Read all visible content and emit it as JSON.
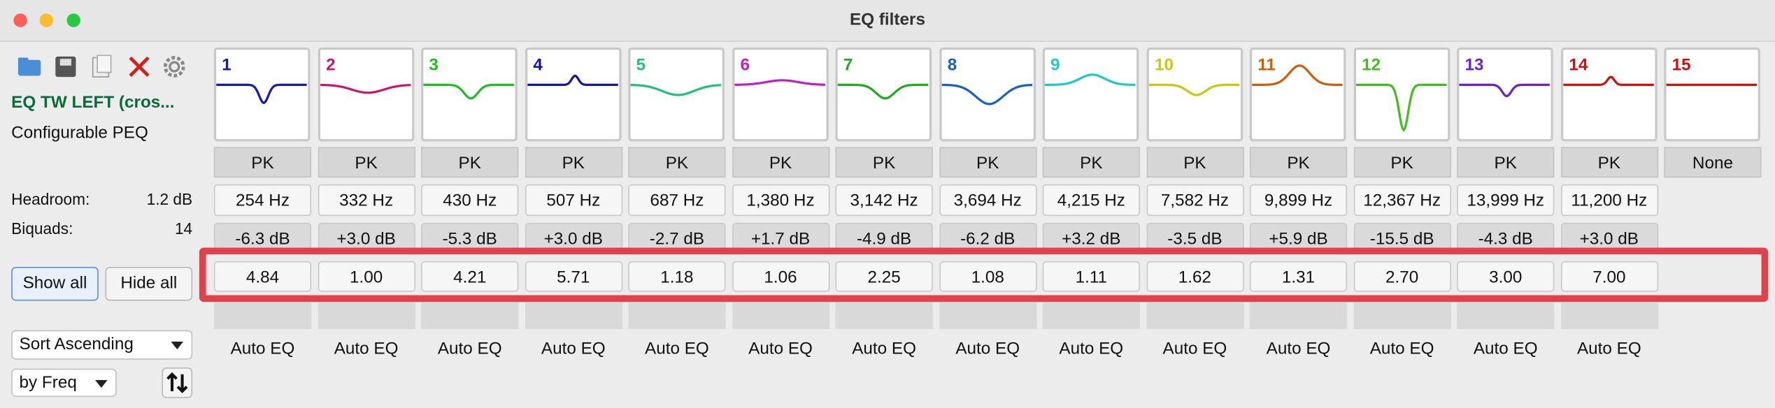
{
  "window": {
    "title": "EQ filters"
  },
  "sidebar": {
    "name": "EQ TW LEFT (cros...",
    "subtitle": "Configurable PEQ",
    "headroom_label": "Headroom:",
    "headroom": "1.2 dB",
    "biquads_label": "Biquads:",
    "biquads": "14",
    "show_all": "Show all",
    "hide_all": "Hide all",
    "sort_order": "Sort Ascending",
    "sort_key": "by Freq"
  },
  "filters": [
    {
      "number": "1",
      "color": "#1a1aa8",
      "type": "PK",
      "freq": "254 Hz",
      "gain": "-6.3 dB",
      "q": "4.84",
      "source": "Auto EQ"
    },
    {
      "number": "2",
      "color": "#c8186a",
      "type": "PK",
      "freq": "332 Hz",
      "gain": "+3.0 dB",
      "q": "1.00",
      "source": "Auto EQ"
    },
    {
      "number": "3",
      "color": "#22bb22",
      "type": "PK",
      "freq": "430 Hz",
      "gain": "-5.3 dB",
      "q": "4.21",
      "source": "Auto EQ"
    },
    {
      "number": "4",
      "color": "#1414a0",
      "type": "PK",
      "freq": "507 Hz",
      "gain": "+3.0 dB",
      "q": "5.71",
      "source": "Auto EQ"
    },
    {
      "number": "5",
      "color": "#22c07a",
      "type": "PK",
      "freq": "687 Hz",
      "gain": "-2.7 dB",
      "q": "1.18",
      "source": "Auto EQ"
    },
    {
      "number": "6",
      "color": "#c020c0",
      "type": "PK",
      "freq": "1,380 Hz",
      "gain": "+1.7 dB",
      "q": "1.06",
      "source": "Auto EQ"
    },
    {
      "number": "7",
      "color": "#22aa22",
      "type": "PK",
      "freq": "3,142 Hz",
      "gain": "-4.9 dB",
      "q": "2.25",
      "source": "Auto EQ"
    },
    {
      "number": "8",
      "color": "#1a60c0",
      "type": "PK",
      "freq": "3,694 Hz",
      "gain": "-6.2 dB",
      "q": "1.08",
      "source": "Auto EQ"
    },
    {
      "number": "9",
      "color": "#20c8c8",
      "type": "PK",
      "freq": "4,215 Hz",
      "gain": "+3.2 dB",
      "q": "1.11",
      "source": "Auto EQ"
    },
    {
      "number": "10",
      "color": "#c8c810",
      "type": "PK",
      "freq": "7,582 Hz",
      "gain": "-3.5 dB",
      "q": "1.62",
      "source": "Auto EQ"
    },
    {
      "number": "11",
      "color": "#c86010",
      "type": "PK",
      "freq": "9,899 Hz",
      "gain": "+5.9 dB",
      "q": "1.31",
      "source": "Auto EQ"
    },
    {
      "number": "12",
      "color": "#44bb22",
      "type": "PK",
      "freq": "12,367 Hz",
      "gain": "-15.5 dB",
      "q": "2.70",
      "source": "Auto EQ"
    },
    {
      "number": "13",
      "color": "#7020c0",
      "type": "PK",
      "freq": "13,999 Hz",
      "gain": "-4.3 dB",
      "q": "3.00",
      "source": "Auto EQ"
    },
    {
      "number": "14",
      "color": "#d01010",
      "type": "PK",
      "freq": "11,200 Hz",
      "gain": "+3.0 dB",
      "q": "7.00",
      "source": "Auto EQ"
    },
    {
      "number": "15",
      "color": "#d01010",
      "type": "None"
    }
  ]
}
